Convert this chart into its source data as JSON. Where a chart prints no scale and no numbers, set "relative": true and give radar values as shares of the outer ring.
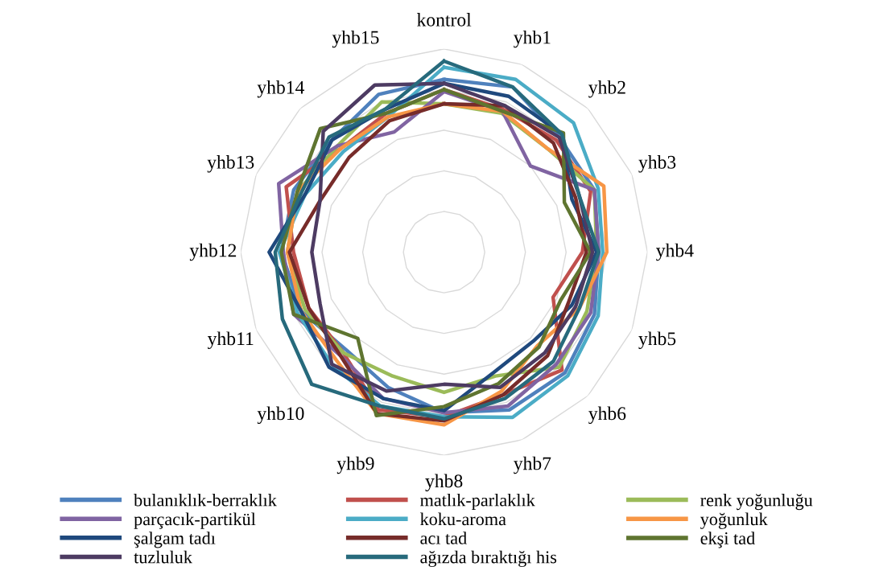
{
  "chart_data": {
    "type": "radar",
    "relative": true,
    "grid": true,
    "legend": "bottom",
    "marker": "none",
    "line_style": "solid",
    "categories": [
      "kontrol",
      "yhb1",
      "yhb2",
      "yhb3",
      "yhb4",
      "yhb5",
      "yhb6",
      "yhb7",
      "yhb8",
      "yhb9",
      "yhb10",
      "yhb11",
      "yhb12",
      "yhb13",
      "yhb14",
      "yhb15"
    ],
    "series": [
      {
        "name": "bulanıklık-berraklık",
        "color": "#4f81bd",
        "values": [
          0.85,
          0.88,
          0.8,
          0.8,
          0.76,
          0.8,
          0.84,
          0.84,
          0.79,
          0.72,
          0.68,
          0.76,
          0.8,
          0.8,
          0.78,
          0.84
        ]
      },
      {
        "name": "matlık-parlaklık",
        "color": "#c0504d",
        "values": [
          0.8,
          0.76,
          0.78,
          0.78,
          0.68,
          0.58,
          0.82,
          0.76,
          0.81,
          0.84,
          0.7,
          0.72,
          0.74,
          0.84,
          0.72,
          0.74
        ]
      },
      {
        "name": "renk yoğunluğu",
        "color": "#9bbb59",
        "values": [
          0.73,
          0.74,
          0.72,
          0.8,
          0.75,
          0.76,
          0.8,
          0.66,
          0.69,
          0.66,
          0.7,
          0.74,
          0.77,
          0.78,
          0.74,
          0.8
        ]
      },
      {
        "name": "parçacık-partikül",
        "color": "#8064a2",
        "values": [
          0.79,
          0.75,
          0.6,
          0.8,
          0.76,
          0.78,
          0.78,
          0.82,
          0.79,
          0.78,
          0.72,
          0.8,
          0.79,
          0.88,
          0.74,
          0.64
        ]
      },
      {
        "name": "koku-aroma",
        "color": "#4bacc6",
        "values": [
          0.91,
          0.92,
          0.9,
          0.82,
          0.78,
          0.82,
          0.86,
          0.88,
          0.81,
          0.82,
          0.78,
          0.78,
          0.81,
          0.74,
          0.7,
          0.72
        ]
      },
      {
        "name": "yoğunluk",
        "color": "#f79646",
        "values": [
          0.73,
          0.75,
          0.72,
          0.85,
          0.8,
          0.72,
          0.65,
          0.74,
          0.85,
          0.86,
          0.75,
          0.76,
          0.77,
          0.78,
          0.72,
          0.72
        ]
      },
      {
        "name": "şalgam tadı",
        "color": "#1f497d",
        "values": [
          0.83,
          0.83,
          0.82,
          0.68,
          0.75,
          0.68,
          0.62,
          0.64,
          0.78,
          0.78,
          0.8,
          0.76,
          0.86,
          0.74,
          0.78,
          0.76
        ]
      },
      {
        "name": "acı tad",
        "color": "#772c2a",
        "values": [
          0.73,
          0.78,
          0.76,
          0.7,
          0.7,
          0.66,
          0.72,
          0.76,
          0.83,
          0.86,
          0.72,
          0.72,
          0.76,
          0.66,
          0.66,
          0.7
        ]
      },
      {
        "name": "ekşi tad",
        "color": "#5f7530",
        "values": [
          0.8,
          0.75,
          0.83,
          0.64,
          0.72,
          0.62,
          0.66,
          0.7,
          0.76,
          0.87,
          0.6,
          0.8,
          0.8,
          0.78,
          0.86,
          0.74
        ]
      },
      {
        "name": "tuzluluk",
        "color": "#4d3b62",
        "values": [
          0.83,
          0.78,
          0.8,
          0.72,
          0.73,
          0.7,
          0.7,
          0.72,
          0.65,
          0.74,
          0.78,
          0.66,
          0.65,
          0.66,
          0.84,
          0.89
        ]
      },
      {
        "name": "ağızda bıraktığı his",
        "color": "#276a7c",
        "values": [
          0.94,
          0.88,
          0.82,
          0.72,
          0.76,
          0.72,
          0.76,
          0.78,
          0.82,
          0.82,
          0.92,
          0.86,
          0.83,
          0.76,
          0.8,
          0.76
        ]
      }
    ]
  }
}
